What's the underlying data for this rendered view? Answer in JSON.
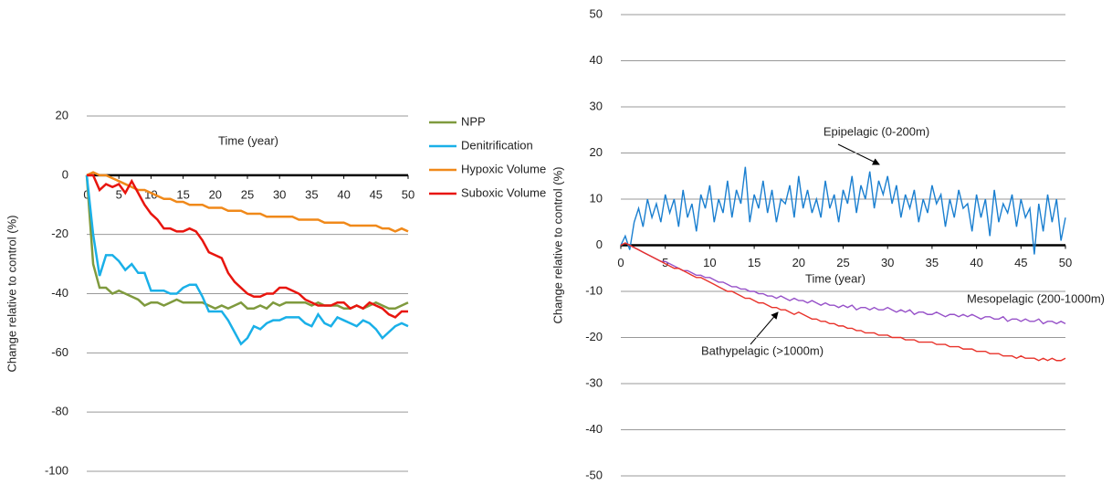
{
  "chart_data": [
    {
      "type": "line",
      "xlabel": "Time (year)",
      "ylabel": "Change relative to control (%)",
      "xlim": [
        0,
        50
      ],
      "xticks": [
        0,
        5,
        10,
        15,
        20,
        25,
        30,
        35,
        40,
        45,
        50
      ],
      "ylim": [
        -100,
        20
      ],
      "yticks": [
        -100,
        -80,
        -60,
        -40,
        -20,
        0,
        20
      ],
      "grid": true,
      "legend": true,
      "x": [
        0,
        1,
        2,
        3,
        4,
        5,
        6,
        7,
        8,
        9,
        10,
        11,
        12,
        13,
        14,
        15,
        16,
        17,
        18,
        19,
        20,
        21,
        22,
        23,
        24,
        25,
        26,
        27,
        28,
        29,
        30,
        31,
        32,
        33,
        34,
        35,
        36,
        37,
        38,
        39,
        40,
        41,
        42,
        43,
        44,
        45,
        46,
        47,
        48,
        49,
        50
      ],
      "series": [
        {
          "name": "NPP",
          "color": "#7f9a3e",
          "values": [
            0,
            -30,
            -38,
            -38,
            -40,
            -39,
            -40,
            -41,
            -42,
            -44,
            -43,
            -43,
            -44,
            -43,
            -42,
            -43,
            -43,
            -43,
            -43,
            -44,
            -45,
            -44,
            -45,
            -44,
            -43,
            -45,
            -45,
            -44,
            -45,
            -43,
            -44,
            -43,
            -43,
            -43,
            -43,
            -44,
            -43,
            -44,
            -44,
            -44,
            -45,
            -45,
            -44,
            -45,
            -44,
            -43,
            -44,
            -45,
            -45,
            -44,
            -43
          ]
        },
        {
          "name": "Denitrification",
          "color": "#1ab0e8",
          "values": [
            0,
            -20,
            -34,
            -27,
            -27,
            -29,
            -32,
            -30,
            -33,
            -33,
            -39,
            -39,
            -39,
            -40,
            -40,
            -38,
            -37,
            -37,
            -41,
            -46,
            -46,
            -46,
            -49,
            -53,
            -57,
            -55,
            -51,
            -52,
            -50,
            -49,
            -49,
            -48,
            -48,
            -48,
            -50,
            -51,
            -47,
            -50,
            -51,
            -48,
            -49,
            -50,
            -51,
            -49,
            -50,
            -52,
            -55,
            -53,
            -51,
            -50,
            -51
          ]
        },
        {
          "name": "Hypoxic Volume",
          "color": "#f0891a",
          "values": [
            0,
            1,
            0,
            0,
            -1,
            -2,
            -3,
            -4,
            -5,
            -5,
            -6,
            -7,
            -8,
            -8,
            -9,
            -9,
            -10,
            -10,
            -10,
            -11,
            -11,
            -11,
            -12,
            -12,
            -12,
            -13,
            -13,
            -13,
            -14,
            -14,
            -14,
            -14,
            -14,
            -15,
            -15,
            -15,
            -15,
            -16,
            -16,
            -16,
            -16,
            -17,
            -17,
            -17,
            -17,
            -17,
            -18,
            -18,
            -19,
            -18,
            -19
          ]
        },
        {
          "name": "Suboxic Volume",
          "color": "#e8150e",
          "values": [
            0,
            0,
            -5,
            -3,
            -4,
            -3,
            -6,
            -2,
            -6,
            -10,
            -13,
            -15,
            -18,
            -18,
            -19,
            -19,
            -18,
            -19,
            -22,
            -26,
            -27,
            -28,
            -33,
            -36,
            -38,
            -40,
            -41,
            -41,
            -40,
            -40,
            -38,
            -38,
            -39,
            -40,
            -42,
            -43,
            -44,
            -44,
            -44,
            -43,
            -43,
            -45,
            -44,
            -45,
            -43,
            -44,
            -45,
            -47,
            -48,
            -46,
            -46
          ]
        }
      ]
    },
    {
      "type": "line",
      "xlabel": "Time (year)",
      "ylabel": "Change relative to control (%)",
      "xlim": [
        0,
        50
      ],
      "xticks": [
        0,
        5,
        10,
        15,
        20,
        25,
        30,
        35,
        40,
        45,
        50
      ],
      "ylim": [
        -50,
        50
      ],
      "yticks": [
        -50,
        -40,
        -30,
        -20,
        -10,
        0,
        10,
        20,
        30,
        40,
        50
      ],
      "grid": true,
      "legend": false,
      "x": [
        0,
        0.5,
        1,
        1.5,
        2,
        2.5,
        3,
        3.5,
        4,
        4.5,
        5,
        5.5,
        6,
        6.5,
        7,
        7.5,
        8,
        8.5,
        9,
        9.5,
        10,
        10.5,
        11,
        11.5,
        12,
        12.5,
        13,
        13.5,
        14,
        14.5,
        15,
        15.5,
        16,
        16.5,
        17,
        17.5,
        18,
        18.5,
        19,
        19.5,
        20,
        20.5,
        21,
        21.5,
        22,
        22.5,
        23,
        23.5,
        24,
        24.5,
        25,
        25.5,
        26,
        26.5,
        27,
        27.5,
        28,
        28.5,
        29,
        29.5,
        30,
        30.5,
        31,
        31.5,
        32,
        32.5,
        33,
        33.5,
        34,
        34.5,
        35,
        35.5,
        36,
        36.5,
        37,
        37.5,
        38,
        38.5,
        39,
        39.5,
        40,
        40.5,
        41,
        41.5,
        42,
        42.5,
        43,
        43.5,
        44,
        44.5,
        45,
        45.5,
        46,
        46.5,
        47,
        47.5,
        48,
        48.5,
        49,
        49.5,
        50
      ],
      "series": [
        {
          "name": "Epipelagic (0-200m)",
          "color": "#1a7fd0",
          "values": [
            0,
            2,
            -1,
            5,
            8,
            4,
            10,
            6,
            9,
            5,
            11,
            7,
            10,
            4,
            12,
            6,
            9,
            3,
            11,
            8,
            13,
            5,
            10,
            7,
            14,
            6,
            12,
            9,
            17,
            5,
            11,
            8,
            14,
            7,
            12,
            5,
            10,
            9,
            13,
            6,
            15,
            8,
            12,
            7,
            10,
            6,
            14,
            8,
            11,
            5,
            12,
            9,
            15,
            7,
            13,
            10,
            16,
            8,
            14,
            11,
            15,
            9,
            13,
            6,
            11,
            8,
            12,
            5,
            10,
            7,
            13,
            9,
            11,
            4,
            10,
            6,
            12,
            8,
            9,
            3,
            11,
            6,
            10,
            2,
            12,
            5,
            9,
            7,
            11,
            4,
            10,
            6,
            8,
            -2,
            9,
            3,
            11,
            5,
            10,
            1,
            6
          ]
        },
        {
          "name": "Mesopelagic (200-1000m)",
          "color": "#9650c8",
          "values": [
            0,
            0.5,
            0,
            -0.5,
            -1,
            -1.5,
            -2,
            -2.5,
            -3,
            -3.5,
            -3.5,
            -4,
            -4.5,
            -5,
            -5.5,
            -5.5,
            -6,
            -6.5,
            -6.5,
            -7,
            -7,
            -7.5,
            -8,
            -8,
            -8.5,
            -9,
            -9,
            -9.5,
            -9.5,
            -10,
            -10,
            -10.5,
            -10.5,
            -11,
            -11,
            -11.5,
            -11,
            -11.5,
            -12,
            -11.5,
            -12,
            -12,
            -12.5,
            -12,
            -12.5,
            -13,
            -12.5,
            -13,
            -13,
            -13.5,
            -13,
            -13.5,
            -13,
            -14,
            -13.5,
            -13.5,
            -14,
            -13.5,
            -14,
            -14,
            -13.5,
            -14,
            -14.5,
            -14,
            -14.5,
            -14,
            -15,
            -14.5,
            -14.5,
            -15,
            -15,
            -14.5,
            -15,
            -15.5,
            -15,
            -15,
            -15.5,
            -15,
            -15.5,
            -15,
            -15.5,
            -16,
            -15.5,
            -15.5,
            -16,
            -16,
            -15.5,
            -16.5,
            -16,
            -16,
            -16.5,
            -16,
            -16.5,
            -16.5,
            -16,
            -17,
            -16.5,
            -16.5,
            -17,
            -16.5,
            -17
          ]
        },
        {
          "name": "Bathypelagic (>1000m)",
          "color": "#e8322a",
          "values": [
            0,
            0.5,
            0,
            -0.5,
            -1,
            -1.5,
            -2,
            -2.5,
            -3,
            -3.5,
            -4,
            -4.5,
            -5,
            -5,
            -5.5,
            -6,
            -6.5,
            -7,
            -7,
            -7.5,
            -8,
            -8.5,
            -9,
            -9.5,
            -10,
            -10,
            -10.5,
            -11,
            -11.5,
            -11.5,
            -12,
            -12.5,
            -12.5,
            -13,
            -13.5,
            -13.5,
            -14,
            -14,
            -14.5,
            -15,
            -14.5,
            -15,
            -15.5,
            -16,
            -16,
            -16.5,
            -16.5,
            -17,
            -17,
            -17.5,
            -17.5,
            -18,
            -18,
            -18.5,
            -18.5,
            -19,
            -19,
            -19,
            -19.5,
            -19.5,
            -19.5,
            -20,
            -20,
            -20,
            -20.5,
            -20.5,
            -20.5,
            -21,
            -21,
            -21,
            -21,
            -21.5,
            -21.5,
            -21.5,
            -22,
            -22,
            -22,
            -22.5,
            -22.5,
            -22.5,
            -23,
            -23,
            -23,
            -23.5,
            -23.5,
            -23.5,
            -24,
            -24,
            -24,
            -24.5,
            -24,
            -24.5,
            -24.5,
            -24.5,
            -25,
            -24.5,
            -25,
            -24.5,
            -25,
            -25,
            -24.5
          ]
        }
      ]
    }
  ]
}
